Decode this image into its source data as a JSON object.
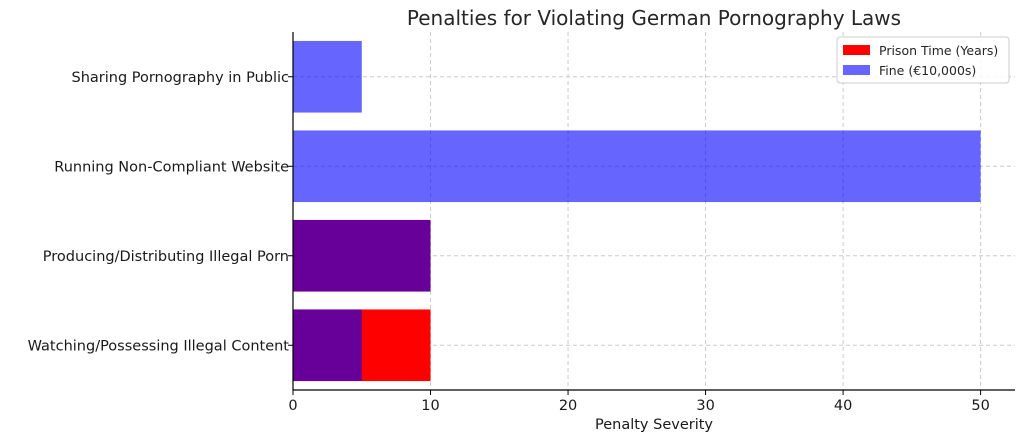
{
  "chart_data": {
    "type": "bar",
    "orientation": "horizontal",
    "stacked": true,
    "title": "Penalties for Violating German Pornography Laws",
    "xlabel": "Penalty Severity",
    "ylabel": "",
    "xlim": [
      0,
      52.5
    ],
    "xticks": [
      0,
      10,
      20,
      30,
      40,
      50
    ],
    "grid": true,
    "legend_position": "top-right",
    "categories": [
      "Watching/Possessing Illegal Content",
      "Producing/Distributing Illegal Porn",
      "Running Non-Compliant Website",
      "Sharing Pornography in Public"
    ],
    "series": [
      {
        "name": "Prison Time (Years)",
        "color": "#ff0000",
        "alpha": 1.0,
        "values": [
          10,
          10,
          0,
          0
        ]
      },
      {
        "name": "Fine (€10,000s)",
        "color": "#0000ff",
        "alpha": 0.6,
        "values": [
          5,
          10,
          50,
          5
        ]
      }
    ]
  }
}
